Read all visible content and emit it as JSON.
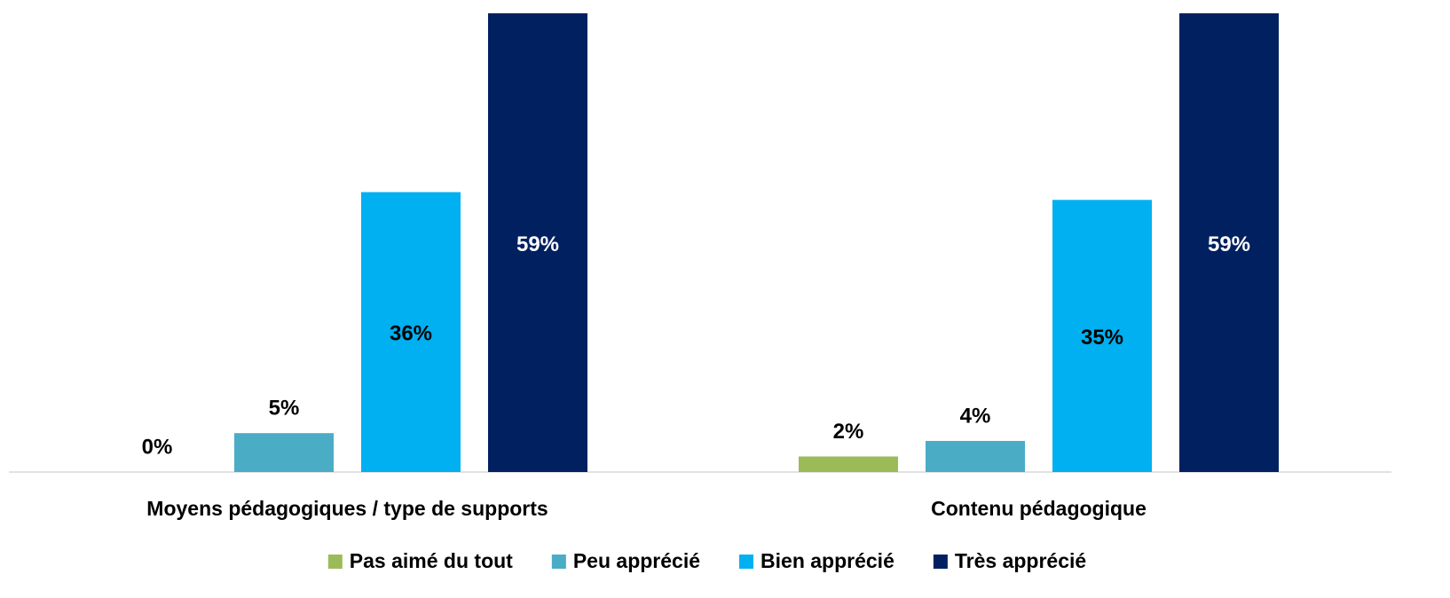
{
  "chart_data": {
    "type": "bar",
    "categories": [
      "Moyens pédagogiques / type de supports",
      "Contenu pédagogique"
    ],
    "series": [
      {
        "name": "Pas aimé du tout",
        "color": "#9bbb59",
        "values": [
          0,
          2
        ],
        "value_labels": [
          "0%",
          "2%"
        ]
      },
      {
        "name": "Peu apprécié",
        "color": "#4bacc6",
        "values": [
          5,
          4
        ],
        "value_labels": [
          "5%",
          "4%"
        ]
      },
      {
        "name": "Bien apprécié",
        "color": "#00b0f0",
        "values": [
          36,
          35
        ],
        "value_labels": [
          "36%",
          "35%"
        ]
      },
      {
        "name": "Très apprécié",
        "color": "#002060",
        "values": [
          59,
          59
        ],
        "value_labels": [
          "59%",
          "59%"
        ]
      }
    ],
    "ylim": [
      0,
      59
    ],
    "legend": "bottom"
  }
}
